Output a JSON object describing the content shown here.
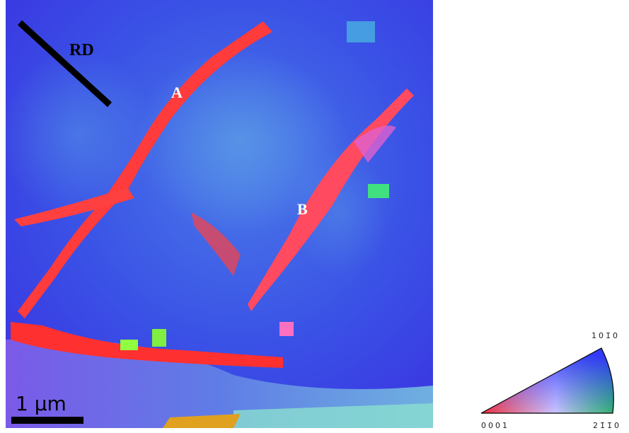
{
  "map": {
    "labels": {
      "rd": "RD",
      "a": "A",
      "b": "B"
    },
    "scale_bar": "1 µm"
  },
  "legend": {
    "corner_0001": "0001",
    "corner_2110": "21̄1̄0",
    "corner_1010": "101̄0"
  }
}
